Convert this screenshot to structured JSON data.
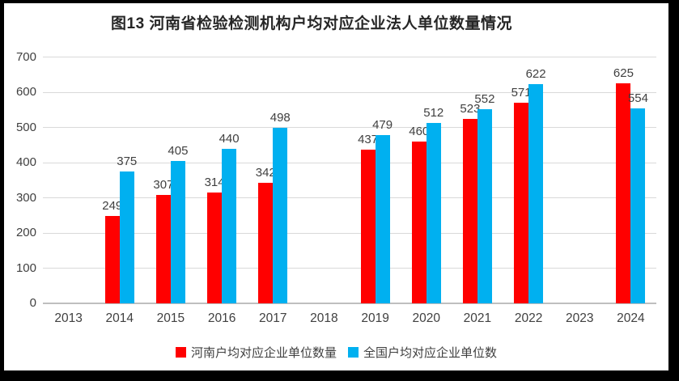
{
  "title": "图13  河南省检验检测机构户均对应企业法人单位数量情况",
  "chart_data": {
    "type": "bar",
    "title": "图13  河南省检验检测机构户均对应企业法人单位数量情况",
    "categories": [
      "2013",
      "2014",
      "2015",
      "2016",
      "2017",
      "2018",
      "2019",
      "2020",
      "2021",
      "2022",
      "2023",
      "2024"
    ],
    "series": [
      {
        "name": "河南户均对应企业单位数量",
        "color": "#FF0000",
        "values": [
          null,
          249,
          307,
          314,
          342,
          null,
          437,
          460,
          523,
          571,
          null,
          625
        ]
      },
      {
        "name": "全国户均对应企业单位数",
        "color": "#00B0F0",
        "values": [
          null,
          375,
          405,
          440,
          498,
          null,
          479,
          512,
          552,
          622,
          null,
          554
        ]
      }
    ],
    "xlabel": "",
    "ylabel": "",
    "ylim": [
      0,
      700
    ],
    "ytick_step": 100,
    "grid": true,
    "legend_position": "bottom",
    "data_labels": true
  },
  "colors": {
    "frame_border": "#000000",
    "background": "#ffffff",
    "gridline": "#D9D9D9",
    "axis_line": "#BFBFBF",
    "tick_text": "#404040",
    "title_text": "#262626",
    "series_henan": "#FF0000",
    "series_national": "#00B0F0"
  }
}
